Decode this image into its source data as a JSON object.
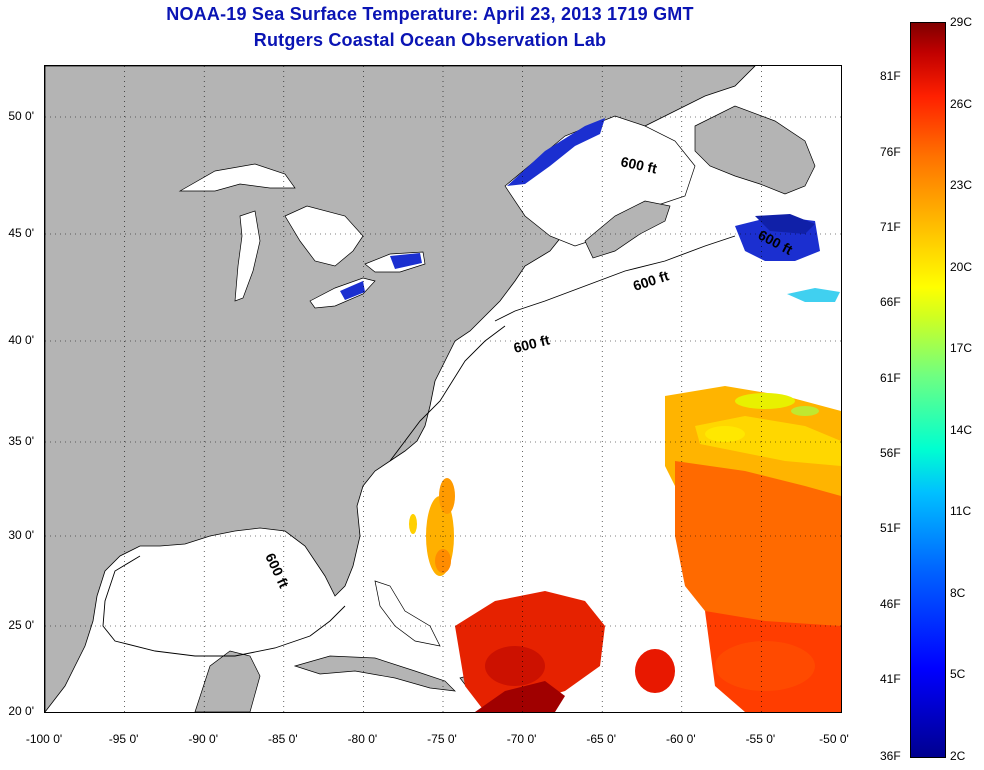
{
  "header": {
    "title": "NOAA-19 Sea Surface Temperature:  April 23, 2013 1719 GMT",
    "subtitle": "Rutgers Coastal Ocean Observation Lab"
  },
  "map": {
    "x_tick_labels": [
      "-100 0'",
      "-95 0'",
      "-90 0'",
      "-85 0'",
      "-80 0'",
      "-75 0'",
      "-70 0'",
      "-65 0'",
      "-60 0'",
      "-55 0'",
      "-50 0'"
    ],
    "y_tick_labels": [
      "20 0'",
      "25 0'",
      "30 0'",
      "35 0'",
      "40 0'",
      "45 0'",
      "50 0'"
    ],
    "contour_labels": [
      "600 ft",
      "600 ft",
      "600 ft",
      "600 ft",
      "600 ft"
    ],
    "colors": {
      "land": "#b4b4b4",
      "ocean": "#ffffff",
      "title": "#0a14b4"
    }
  },
  "colorbar": {
    "fahrenheit_labels": [
      "81F",
      "76F",
      "71F",
      "66F",
      "61F",
      "56F",
      "51F",
      "46F",
      "41F",
      "36F"
    ],
    "celsius_labels": [
      "29C",
      "26C",
      "23C",
      "20C",
      "17C",
      "14C",
      "11C",
      "8C",
      "5C",
      "2C"
    ]
  }
}
